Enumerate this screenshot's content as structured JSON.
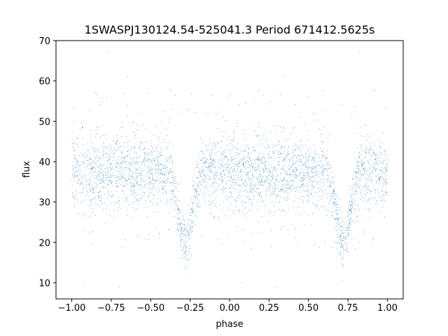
{
  "chart_data": {
    "type": "scatter",
    "title": "1SWASPJ130124.54-525041.3 Period 671412.5625s",
    "xlabel": "phase",
    "ylabel": "flux",
    "xlim": [
      -1.1,
      1.1
    ],
    "ylim": [
      6,
      70
    ],
    "xticks": [
      -1.0,
      -0.75,
      -0.5,
      -0.25,
      0.0,
      0.25,
      0.5,
      0.75,
      1.0
    ],
    "xtick_labels": [
      "−1.00",
      "−0.75",
      "−0.50",
      "−0.25",
      "0.00",
      "0.25",
      "0.50",
      "0.75",
      "1.00"
    ],
    "yticks": [
      10,
      20,
      30,
      40,
      50,
      60,
      70
    ],
    "ytick_labels": [
      "10",
      "20",
      "30",
      "40",
      "50",
      "60",
      "70"
    ],
    "grid": false,
    "legend": "none",
    "marker_color": "#1f77b4",
    "description": "Phase-folded light curve; dense band of points between flux ~26 and ~50 across phase -1 to 1, with eclipse dips to ~14 centered at phase -0.28 and 0.72, sparse outliers up to ~67 and down to ~9.",
    "series": [
      {
        "name": "",
        "band": {
          "x_range": [
            -1.0,
            1.0
          ],
          "y_low": 26,
          "y_high": 50,
          "y_center": 37.5
        },
        "eclipses": [
          {
            "phase_center": -0.28,
            "min_flux": 14,
            "half_width": 0.09
          },
          {
            "phase_center": 0.72,
            "min_flux": 14,
            "half_width": 0.09
          }
        ],
        "sample_points": [
          {
            "x": -0.78,
            "y": 67
          },
          {
            "x": 0.82,
            "y": 67
          },
          {
            "x": -0.65,
            "y": 61
          },
          {
            "x": 0.35,
            "y": 61
          },
          {
            "x": -0.92,
            "y": 10
          },
          {
            "x": 0.08,
            "y": 10
          },
          {
            "x": -0.7,
            "y": 9
          },
          {
            "x": 0.3,
            "y": 9
          }
        ]
      }
    ]
  }
}
